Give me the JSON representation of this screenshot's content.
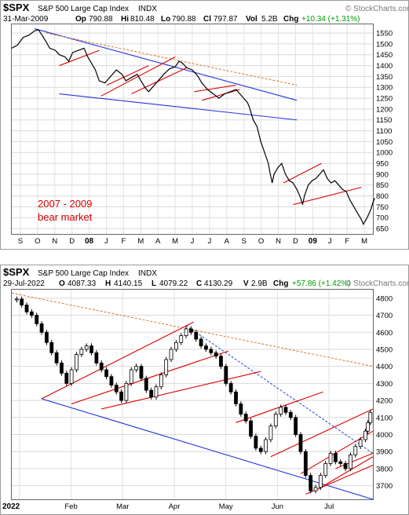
{
  "chart_data": [
    {
      "type": "line",
      "symbol": "$SPX",
      "name": "S&P 500 Large Cap Index",
      "exchange": "INDX",
      "date": "31-Mar-2009",
      "quote": {
        "open_label": "Op",
        "open": "790.88",
        "high_label": "Hi",
        "high": "810.48",
        "low_label": "Lo",
        "low": "790.88",
        "close_label": "Cl",
        "close": "797.87",
        "vol_label": "Vol",
        "vol": "5.2B",
        "chg_label": "Chg",
        "chg": "+10.34 (+1.31%)"
      },
      "brand": "© StockCharts.com",
      "annotation": [
        "2007 - 2009",
        "bear market"
      ],
      "x_labels": [
        "S",
        "O",
        "N",
        "D",
        "08",
        "J",
        "F",
        "M",
        "A",
        "M",
        "J",
        "J",
        "A",
        "S",
        "O",
        "N",
        "D",
        "09",
        "J",
        "F",
        "M"
      ],
      "y_ticks": [
        650,
        700,
        750,
        800,
        850,
        900,
        950,
        1000,
        1050,
        1100,
        1150,
        1200,
        1250,
        1300,
        1350,
        1400,
        1450,
        1500,
        1550
      ],
      "ylim": [
        625,
        1590
      ],
      "x_range": [
        0,
        19
      ],
      "series": {
        "points": [
          [
            0,
            1480
          ],
          [
            0.3,
            1495
          ],
          [
            0.6,
            1530
          ],
          [
            0.9,
            1540
          ],
          [
            1.2,
            1560
          ],
          [
            1.4,
            1565
          ],
          [
            1.6,
            1540
          ],
          [
            1.8,
            1510
          ],
          [
            2.0,
            1480
          ],
          [
            2.3,
            1470
          ],
          [
            2.5,
            1450
          ],
          [
            2.8,
            1440
          ],
          [
            3.0,
            1420
          ],
          [
            3.2,
            1460
          ],
          [
            3.5,
            1470
          ],
          [
            3.8,
            1480
          ],
          [
            4.0,
            1440
          ],
          [
            4.2,
            1410
          ],
          [
            4.4,
            1380
          ],
          [
            4.6,
            1330
          ],
          [
            4.9,
            1320
          ],
          [
            5.2,
            1350
          ],
          [
            5.5,
            1380
          ],
          [
            5.8,
            1360
          ],
          [
            6.0,
            1330
          ],
          [
            6.3,
            1345
          ],
          [
            6.6,
            1360
          ],
          [
            6.8,
            1330
          ],
          [
            7.0,
            1300
          ],
          [
            7.2,
            1280
          ],
          [
            7.5,
            1310
          ],
          [
            7.8,
            1340
          ],
          [
            8.0,
            1360
          ],
          [
            8.3,
            1385
          ],
          [
            8.6,
            1395
          ],
          [
            8.8,
            1420
          ],
          [
            9.0,
            1410
          ],
          [
            9.2,
            1390
          ],
          [
            9.5,
            1380
          ],
          [
            9.8,
            1350
          ],
          [
            10.0,
            1320
          ],
          [
            10.3,
            1290
          ],
          [
            10.6,
            1270
          ],
          [
            10.9,
            1250
          ],
          [
            11.2,
            1270
          ],
          [
            11.5,
            1280
          ],
          [
            11.8,
            1290
          ],
          [
            12.0,
            1270
          ],
          [
            12.2,
            1250
          ],
          [
            12.4,
            1230
          ],
          [
            12.5,
            1210
          ],
          [
            12.7,
            1150
          ],
          [
            12.9,
            1120
          ],
          [
            13.1,
            1050
          ],
          [
            13.3,
            1000
          ],
          [
            13.5,
            950
          ],
          [
            13.6,
            900
          ],
          [
            13.7,
            860
          ],
          [
            13.8,
            900
          ],
          [
            14.0,
            930
          ],
          [
            14.2,
            950
          ],
          [
            14.4,
            900
          ],
          [
            14.6,
            870
          ],
          [
            14.8,
            860
          ],
          [
            15.0,
            830
          ],
          [
            15.2,
            790
          ],
          [
            15.3,
            760
          ],
          [
            15.4,
            800
          ],
          [
            15.6,
            850
          ],
          [
            15.8,
            870
          ],
          [
            16.0,
            880
          ],
          [
            16.2,
            900
          ],
          [
            16.4,
            920
          ],
          [
            16.6,
            880
          ],
          [
            16.8,
            860
          ],
          [
            17.0,
            870
          ],
          [
            17.2,
            850
          ],
          [
            17.4,
            830
          ],
          [
            17.6,
            820
          ],
          [
            17.8,
            780
          ],
          [
            18.0,
            750
          ],
          [
            18.2,
            720
          ],
          [
            18.4,
            690
          ],
          [
            18.5,
            670
          ],
          [
            18.7,
            700
          ],
          [
            18.9,
            740
          ],
          [
            19.0,
            770
          ],
          [
            19.1,
            790
          ]
        ]
      },
      "trend_lines": [
        {
          "color": "#2233dd",
          "from": [
            1.2,
            1570
          ],
          "to": [
            15.0,
            1240
          ]
        },
        {
          "color": "#2233dd",
          "from": [
            2.5,
            1270
          ],
          "to": [
            15.0,
            1150
          ]
        },
        {
          "color": "#e08040",
          "dashed": true,
          "from": [
            1.8,
            1550
          ],
          "to": [
            15.0,
            1310
          ]
        },
        {
          "color": "#dd0000",
          "from": [
            2.5,
            1400
          ],
          "to": [
            4.6,
            1470
          ]
        },
        {
          "color": "#dd0000",
          "from": [
            4.7,
            1260
          ],
          "to": [
            8.6,
            1440
          ]
        },
        {
          "color": "#dd0000",
          "from": [
            5.0,
            1310
          ],
          "to": [
            7.2,
            1400
          ]
        },
        {
          "color": "#dd0000",
          "from": [
            6.3,
            1270
          ],
          "to": [
            9.2,
            1390
          ]
        },
        {
          "color": "#dd0000",
          "from": [
            10.0,
            1240
          ],
          "to": [
            12.0,
            1290
          ]
        },
        {
          "color": "#dd0000",
          "from": [
            9.6,
            1280
          ],
          "to": [
            11.8,
            1310
          ]
        },
        {
          "color": "#dd0000",
          "from": [
            14.3,
            860
          ],
          "to": [
            16.3,
            950
          ]
        },
        {
          "color": "#dd0000",
          "from": [
            14.8,
            760
          ],
          "to": [
            18.4,
            840
          ]
        }
      ]
    },
    {
      "type": "bar",
      "symbol": "$SPX",
      "name": "S&P 500 Large Cap Index",
      "exchange": "INDX",
      "date": "29-Jul-2022",
      "quote": {
        "open_label": "O",
        "open": "4087.33",
        "high_label": "H",
        "high": "4140.15",
        "low_label": "L",
        "low": "4079.22",
        "close_label": "C",
        "close": "4130.29",
        "vol_label": "V",
        "vol": "2.9B",
        "chg_label": "Chg",
        "chg": "+57.86 (+1.42%)"
      },
      "brand": "© StockCharts.com",
      "x_labels": [
        "2022",
        "Feb",
        "Mar",
        "Apr",
        "May",
        "Jun",
        "Jul"
      ],
      "y_ticks": [
        3700,
        3800,
        3900,
        4000,
        4100,
        4200,
        4300,
        4400,
        4500,
        4600,
        4700,
        4800
      ],
      "ylim": [
        3620,
        4850
      ],
      "x_range": [
        0,
        145
      ],
      "series": {
        "points": [
          [
            0,
            4790
          ],
          [
            2,
            4795
          ],
          [
            4,
            4760
          ],
          [
            6,
            4720
          ],
          [
            8,
            4700
          ],
          [
            10,
            4650
          ],
          [
            12,
            4600
          ],
          [
            14,
            4540
          ],
          [
            16,
            4480
          ],
          [
            18,
            4420
          ],
          [
            20,
            4360
          ],
          [
            22,
            4300
          ],
          [
            24,
            4380
          ],
          [
            26,
            4470
          ],
          [
            28,
            4500
          ],
          [
            30,
            4520
          ],
          [
            32,
            4480
          ],
          [
            34,
            4420
          ],
          [
            36,
            4380
          ],
          [
            38,
            4340
          ],
          [
            40,
            4290
          ],
          [
            42,
            4250
          ],
          [
            44,
            4200
          ],
          [
            46,
            4300
          ],
          [
            48,
            4380
          ],
          [
            50,
            4400
          ],
          [
            52,
            4330
          ],
          [
            54,
            4260
          ],
          [
            56,
            4220
          ],
          [
            58,
            4280
          ],
          [
            60,
            4350
          ],
          [
            62,
            4440
          ],
          [
            64,
            4500
          ],
          [
            66,
            4540
          ],
          [
            68,
            4580
          ],
          [
            70,
            4620
          ],
          [
            72,
            4600
          ],
          [
            74,
            4560
          ],
          [
            76,
            4520
          ],
          [
            78,
            4500
          ],
          [
            80,
            4480
          ],
          [
            82,
            4460
          ],
          [
            84,
            4400
          ],
          [
            86,
            4300
          ],
          [
            88,
            4250
          ],
          [
            90,
            4180
          ],
          [
            92,
            4120
          ],
          [
            94,
            4080
          ],
          [
            96,
            3990
          ],
          [
            98,
            3920
          ],
          [
            100,
            3900
          ],
          [
            102,
            3970
          ],
          [
            104,
            4050
          ],
          [
            106,
            4120
          ],
          [
            108,
            4160
          ],
          [
            110,
            4130
          ],
          [
            112,
            4100
          ],
          [
            114,
            4000
          ],
          [
            116,
            3900
          ],
          [
            118,
            3760
          ],
          [
            120,
            3670
          ],
          [
            122,
            3690
          ],
          [
            124,
            3760
          ],
          [
            126,
            3830
          ],
          [
            128,
            3890
          ],
          [
            130,
            3840
          ],
          [
            132,
            3830
          ],
          [
            134,
            3800
          ],
          [
            136,
            3880
          ],
          [
            138,
            3930
          ],
          [
            140,
            3970
          ],
          [
            142,
            4020
          ],
          [
            143,
            4070
          ],
          [
            144,
            4130
          ]
        ]
      },
      "trend_lines": [
        {
          "color": "#2233dd",
          "from": [
            12,
            4210
          ],
          "to": [
            145,
            3620
          ]
        },
        {
          "color": "#3355dd",
          "dashed": true,
          "from": [
            70,
            4640
          ],
          "to": [
            145,
            3890
          ]
        },
        {
          "color": "#e08040",
          "dashed": true,
          "from": [
            0,
            4830
          ],
          "to": [
            145,
            4400
          ]
        },
        {
          "color": "#dd0000",
          "from": [
            12,
            4210
          ],
          "to": [
            73,
            4660
          ]
        },
        {
          "color": "#dd0000",
          "from": [
            24,
            4180
          ],
          "to": [
            87,
            4490
          ]
        },
        {
          "color": "#dd0000",
          "from": [
            36,
            4150
          ],
          "to": [
            100,
            4370
          ]
        },
        {
          "color": "#dd0000",
          "from": [
            90,
            4070
          ],
          "to": [
            125,
            4250
          ]
        },
        {
          "color": "#dd0000",
          "from": [
            104,
            3870
          ],
          "to": [
            145,
            4150
          ]
        },
        {
          "color": "#dd0000",
          "from": [
            116,
            3770
          ],
          "to": [
            145,
            4020
          ]
        },
        {
          "color": "#dd0000",
          "from": [
            118,
            3650
          ],
          "to": [
            145,
            3820
          ]
        },
        {
          "color": "#dd0000",
          "from": [
            123,
            3680
          ],
          "to": [
            145,
            3870
          ]
        },
        {
          "color": "#dd0000",
          "from": [
            130,
            3800
          ],
          "to": [
            145,
            3890
          ]
        }
      ]
    }
  ]
}
